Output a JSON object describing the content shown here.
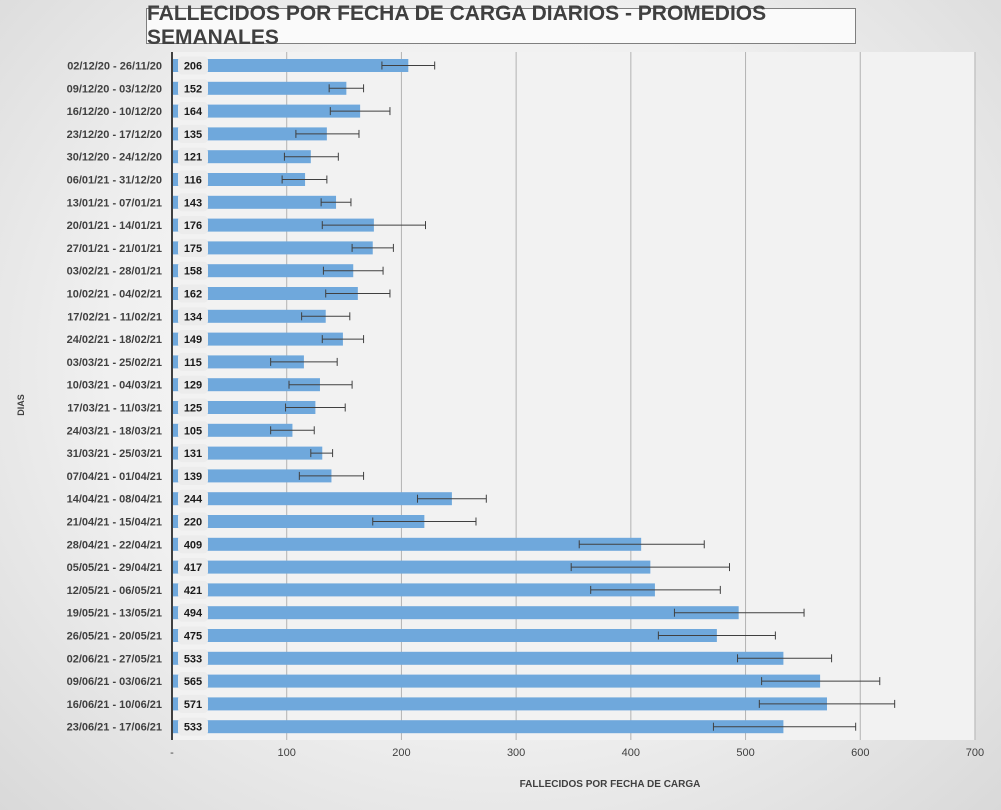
{
  "chart_data": {
    "type": "bar",
    "orientation": "horizontal",
    "title": "FALLECIDOS POR FECHA DE CARGA DIARIOS - PROMEDIOS SEMANALES",
    "xlabel": "FALLECIDOS POR FECHA DE CARGA",
    "ylabel": "DIAS",
    "xlim": [
      0,
      700
    ],
    "x_ticks": [
      "-",
      "100",
      "200",
      "300",
      "400",
      "500",
      "600",
      "700"
    ],
    "x_tick_values": [
      0,
      100,
      200,
      300,
      400,
      500,
      600,
      700
    ],
    "grid": "vertical",
    "bar_color": "#6fa8dc",
    "error_bar_color": "#404040",
    "categories": [
      "02/12/20 - 26/11/20",
      "09/12/20 - 03/12/20",
      "16/12/20 - 10/12/20",
      "23/12/20 - 17/12/20",
      "30/12/20 - 24/12/20",
      "06/01/21 - 31/12/20",
      "13/01/21 - 07/01/21",
      "20/01/21 - 14/01/21",
      "27/01/21 - 21/01/21",
      "03/02/21 - 28/01/21",
      "10/02/21 - 04/02/21",
      "17/02/21 - 11/02/21",
      "24/02/21 - 18/02/21",
      "03/03/21 - 25/02/21",
      "10/03/21 - 04/03/21",
      "17/03/21 - 11/03/21",
      "24/03/21 - 18/03/21",
      "31/03/21 - 25/03/21",
      "07/04/21 - 01/04/21",
      "14/04/21 - 08/04/21",
      "21/04/21 - 15/04/21",
      "28/04/21 - 22/04/21",
      "05/05/21 - 29/04/21",
      "12/05/21 - 06/05/21",
      "19/05/21 - 13/05/21",
      "26/05/21 - 20/05/21",
      "02/06/21 - 27/05/21",
      "09/06/21 - 03/06/21",
      "16/06/21 - 10/06/21",
      "23/06/21 - 17/06/21"
    ],
    "values": [
      206,
      152,
      164,
      135,
      121,
      116,
      143,
      176,
      175,
      158,
      162,
      134,
      149,
      115,
      129,
      125,
      105,
      131,
      139,
      244,
      220,
      409,
      417,
      421,
      494,
      475,
      533,
      565,
      571,
      533
    ],
    "error_low": [
      183,
      137,
      138,
      108,
      98,
      96,
      130,
      131,
      157,
      132,
      134,
      113,
      131,
      86,
      102,
      99,
      86,
      121,
      111,
      214,
      175,
      355,
      348,
      365,
      438,
      424,
      493,
      514,
      512,
      472
    ],
    "error_high": [
      229,
      167,
      190,
      163,
      145,
      135,
      156,
      221,
      193,
      184,
      190,
      155,
      167,
      144,
      157,
      151,
      124,
      140,
      167,
      274,
      265,
      464,
      486,
      478,
      551,
      526,
      575,
      617,
      630,
      596
    ]
  }
}
